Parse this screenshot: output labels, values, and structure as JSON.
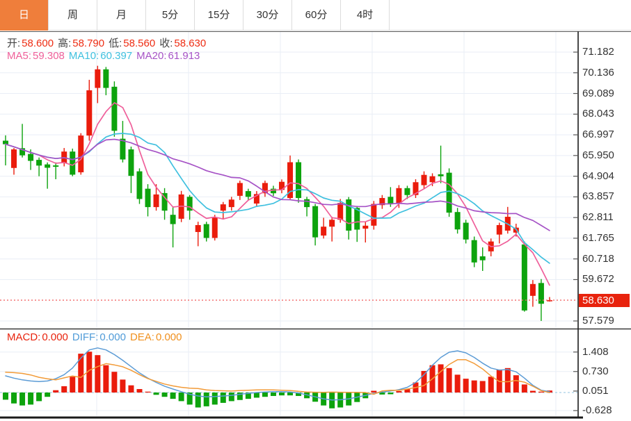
{
  "tabs": {
    "items": [
      {
        "label": "日",
        "active": true
      },
      {
        "label": "周",
        "active": false
      },
      {
        "label": "月",
        "active": false
      },
      {
        "label": "5分",
        "active": false
      },
      {
        "label": "15分",
        "active": false
      },
      {
        "label": "30分",
        "active": false
      },
      {
        "label": "60分",
        "active": false
      },
      {
        "label": "4时",
        "active": false
      }
    ],
    "active_bg": "#ef7e3b"
  },
  "info": {
    "ohlc": [
      {
        "label": "开:",
        "value": "58.600"
      },
      {
        "label": "高:",
        "value": "58.790"
      },
      {
        "label": "低:",
        "value": "58.560"
      },
      {
        "label": "收:",
        "value": "58.630"
      }
    ],
    "ohlc_value_color": "#ee2c12",
    "ma": [
      {
        "label": "MA5:",
        "value": "59.308",
        "color": "#ef5f9a"
      },
      {
        "label": "MA10:",
        "value": "60.397",
        "color": "#3fc0df"
      },
      {
        "label": "MA20:",
        "value": "61.913",
        "color": "#a653c6"
      }
    ]
  },
  "price_axis": {
    "ticks": [
      "71.182",
      "70.136",
      "69.089",
      "68.043",
      "66.997",
      "65.950",
      "64.904",
      "63.857",
      "62.811",
      "61.765",
      "60.718",
      "59.672",
      "57.579"
    ],
    "tick_values": [
      71.182,
      70.136,
      69.089,
      68.043,
      66.997,
      65.95,
      64.904,
      63.857,
      62.811,
      61.765,
      60.718,
      59.672,
      57.579
    ]
  },
  "price_tag": {
    "label": "58.630",
    "value": 58.63,
    "color": "#e8230d"
  },
  "macd_panel": {
    "legend": [
      {
        "label": "MACD:",
        "value": "0.000",
        "color": "#e8230d"
      },
      {
        "label": "DIFF:",
        "value": "0.000",
        "color": "#4f9bd8"
      },
      {
        "label": "DEA:",
        "value": "0.000",
        "color": "#f0901e"
      }
    ],
    "axis_ticks": [
      "1.408",
      "0.730",
      "0.051",
      "-0.628"
    ],
    "axis_tick_values": [
      1.408,
      0.73,
      0.051,
      -0.628
    ]
  },
  "colors": {
    "up": "#ea1c0c",
    "down": "#0da30d",
    "ma5": "#ef5f9a",
    "ma10": "#3fc0df",
    "ma20": "#a653c6",
    "diff_line": "#5b9bd5",
    "dea_line": "#f29b38",
    "grid": "#e9eef6",
    "zero_dash": "#a6cfe6",
    "price_dotted": "#f26666",
    "axis_line": "#1a1a1a",
    "tag_bg": "#e8230d"
  },
  "chart_data": {
    "type": "candlestick",
    "panels": [
      "price",
      "macd"
    ],
    "price_axis_range": [
      57.579,
      71.182
    ],
    "last_price": 58.63,
    "ma_periods": [
      5,
      10,
      20
    ],
    "candles": {
      "columns": [
        "open",
        "high",
        "low",
        "close"
      ],
      "rows": [
        [
          66.7,
          66.97,
          65.45,
          66.52
        ],
        [
          65.32,
          66.33,
          64.98,
          66.26
        ],
        [
          66.32,
          67.55,
          65.85,
          65.96
        ],
        [
          66.03,
          66.26,
          65.22,
          65.68
        ],
        [
          65.73,
          65.85,
          64.9,
          65.44
        ],
        [
          65.5,
          65.6,
          64.27,
          65.33
        ],
        [
          65.45,
          65.6,
          64.75,
          65.38
        ],
        [
          65.56,
          66.33,
          65.4,
          66.15
        ],
        [
          66.15,
          66.3,
          64.9,
          64.98
        ],
        [
          65.1,
          67.08,
          64.98,
          66.96
        ],
        [
          66.96,
          69.78,
          66.7,
          69.25
        ],
        [
          69.37,
          70.49,
          68.6,
          70.31
        ],
        [
          70.31,
          70.43,
          69.0,
          69.37
        ],
        [
          69.43,
          69.7,
          66.9,
          67.2
        ],
        [
          66.8,
          67.7,
          65.6,
          65.75
        ],
        [
          66.26,
          66.4,
          64.05,
          64.92
        ],
        [
          65.15,
          65.3,
          63.5,
          63.75
        ],
        [
          64.27,
          64.5,
          62.87,
          63.34
        ],
        [
          63.34,
          64.5,
          63.16,
          63.98
        ],
        [
          64.05,
          64.3,
          62.7,
          63.16
        ],
        [
          62.95,
          63.34,
          61.3,
          62.48
        ],
        [
          62.75,
          64.16,
          62.58,
          63.98
        ],
        [
          63.86,
          63.95,
          62.7,
          63.16
        ],
        [
          62.08,
          62.6,
          61.36,
          62.43
        ],
        [
          62.48,
          62.6,
          61.6,
          61.78
        ],
        [
          61.78,
          62.95,
          61.65,
          62.83
        ],
        [
          63.16,
          63.6,
          62.75,
          63.48
        ],
        [
          63.34,
          63.86,
          63.16,
          63.72
        ],
        [
          63.91,
          64.68,
          63.7,
          64.56
        ],
        [
          64.15,
          64.27,
          63.68,
          63.86
        ],
        [
          63.52,
          64.15,
          63.35,
          64.0
        ],
        [
          64.04,
          64.68,
          63.86,
          64.56
        ],
        [
          64.27,
          64.42,
          63.9,
          64.04
        ],
        [
          64.21,
          64.74,
          64.04,
          64.62
        ],
        [
          63.8,
          65.95,
          63.7,
          65.61
        ],
        [
          65.61,
          65.75,
          63.56,
          63.8
        ],
        [
          63.74,
          63.86,
          62.87,
          63.34
        ],
        [
          63.39,
          63.5,
          61.4,
          61.81
        ],
        [
          61.9,
          62.8,
          61.75,
          62.35
        ],
        [
          62.35,
          62.85,
          61.6,
          62.7
        ],
        [
          62.7,
          63.75,
          62.55,
          63.55
        ],
        [
          63.73,
          63.85,
          61.7,
          62.15
        ],
        [
          63.3,
          63.4,
          61.58,
          62.2
        ],
        [
          62.25,
          62.6,
          61.55,
          62.4
        ],
        [
          62.4,
          63.65,
          62.2,
          63.5
        ],
        [
          63.44,
          63.95,
          63.25,
          63.8
        ],
        [
          63.86,
          64.35,
          63.35,
          63.5
        ],
        [
          63.5,
          64.45,
          63.3,
          64.3
        ],
        [
          64.3,
          64.42,
          63.75,
          63.95
        ],
        [
          63.95,
          64.75,
          63.8,
          64.6
        ],
        [
          64.45,
          65.15,
          64.25,
          64.97
        ],
        [
          64.6,
          65.05,
          64.4,
          64.9
        ],
        [
          65.0,
          66.45,
          64.55,
          64.9
        ],
        [
          65.08,
          65.3,
          62.85,
          63.06
        ],
        [
          63.09,
          63.3,
          62.0,
          62.21
        ],
        [
          62.55,
          62.7,
          61.5,
          61.7
        ],
        [
          61.67,
          61.85,
          60.3,
          60.54
        ],
        [
          60.85,
          61.3,
          60.11,
          60.65
        ],
        [
          61.1,
          61.75,
          60.85,
          61.6
        ],
        [
          61.95,
          62.55,
          61.5,
          62.43
        ],
        [
          62.15,
          63.35,
          62.0,
          62.85
        ],
        [
          62.05,
          62.5,
          61.85,
          62.3
        ],
        [
          61.45,
          61.6,
          58.05,
          58.11
        ],
        [
          58.85,
          59.65,
          58.3,
          59.45
        ],
        [
          59.5,
          59.7,
          57.58,
          58.45
        ],
        [
          58.6,
          58.79,
          58.56,
          58.63
        ]
      ]
    },
    "macd": {
      "axis_ticks": [
        1.408,
        0.73,
        0.051,
        -0.628
      ],
      "histogram": [
        -0.25,
        -0.38,
        -0.45,
        -0.42,
        -0.3,
        -0.15,
        0.08,
        0.22,
        0.55,
        1.35,
        1.42,
        1.3,
        0.95,
        0.72,
        0.45,
        0.25,
        0.12,
        0.03,
        -0.08,
        -0.15,
        -0.22,
        -0.3,
        -0.42,
        -0.52,
        -0.48,
        -0.42,
        -0.36,
        -0.3,
        -0.26,
        -0.22,
        -0.18,
        -0.15,
        -0.12,
        -0.1,
        -0.1,
        -0.12,
        -0.2,
        -0.32,
        -0.45,
        -0.55,
        -0.52,
        -0.45,
        -0.33,
        -0.2,
        0.06,
        -0.07,
        -0.06,
        0.05,
        0.12,
        0.35,
        0.75,
        0.95,
        0.98,
        0.85,
        0.62,
        0.48,
        0.42,
        0.4,
        0.55,
        0.8,
        0.85,
        0.6,
        0.28,
        0.06,
        0.03,
        0.07
      ],
      "diff": [
        0.58,
        0.5,
        0.44,
        0.4,
        0.38,
        0.4,
        0.48,
        0.62,
        0.85,
        1.2,
        1.48,
        1.55,
        1.48,
        1.32,
        1.12,
        0.9,
        0.68,
        0.5,
        0.35,
        0.22,
        0.12,
        0.03,
        -0.06,
        -0.12,
        -0.15,
        -0.14,
        -0.12,
        -0.1,
        -0.06,
        -0.03,
        0.0,
        0.02,
        0.03,
        0.03,
        0.02,
        -0.02,
        -0.08,
        -0.15,
        -0.22,
        -0.26,
        -0.25,
        -0.22,
        -0.16,
        -0.1,
        -0.03,
        0.02,
        0.05,
        0.1,
        0.18,
        0.35,
        0.62,
        0.95,
        1.22,
        1.4,
        1.45,
        1.38,
        1.22,
        1.02,
        0.85,
        0.78,
        0.8,
        0.72,
        0.5,
        0.25,
        0.08,
        0.03
      ],
      "dea_rule": "dea[i] = diff[i] - histogram[i]/2"
    }
  }
}
